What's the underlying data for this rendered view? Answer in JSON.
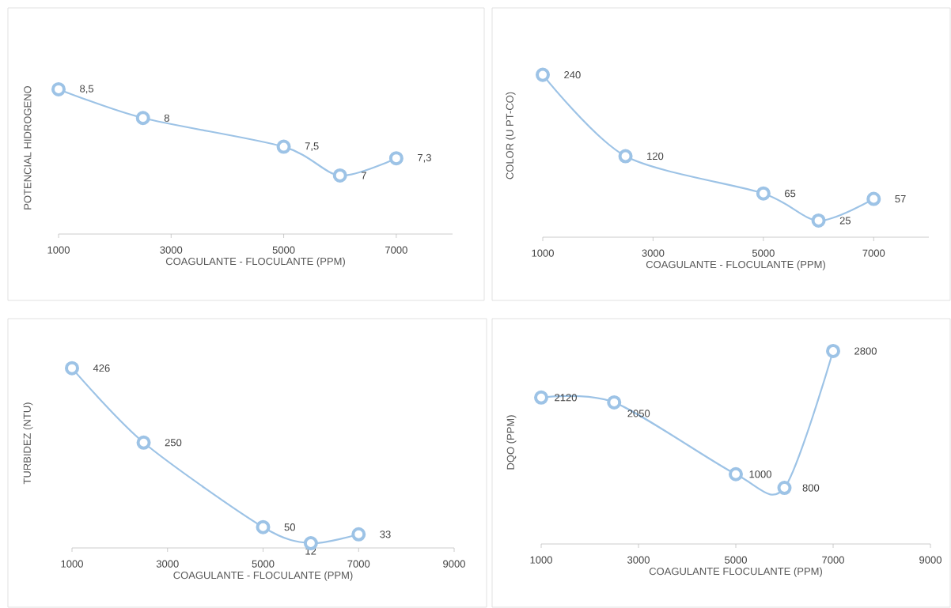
{
  "chart_data": [
    {
      "type": "line",
      "xlabel": "COAGULANTE - FLOCULANTE (PPM)",
      "ylabel": "POTENCIAL HIDROGENO",
      "x": [
        1000,
        2500,
        5000,
        6000,
        7000
      ],
      "values": [
        8.5,
        8,
        7.5,
        7,
        7.3
      ],
      "value_labels": [
        "8,5",
        "8",
        "7,5",
        "7",
        "7,3"
      ],
      "color": "#9dc3e6",
      "marker": "circle",
      "xlim": [
        1000,
        8000
      ],
      "xticks": [
        1000,
        3000,
        5000,
        7000
      ],
      "tick_labels": "x"
    },
    {
      "type": "line",
      "xlabel": "COAGULANTE - FLOCULANTE (PPM)",
      "ylabel": "COLOR (U PT-CO)",
      "x": [
        1000,
        2500,
        5000,
        6000,
        7000
      ],
      "values": [
        240,
        120,
        65,
        25,
        57
      ],
      "value_labels": [
        "240",
        "120",
        "65",
        "25",
        "57"
      ],
      "color": "#9dc3e6",
      "marker": "circle",
      "xlim": [
        1000,
        8000
      ],
      "xticks": [
        1000,
        3000,
        5000,
        7000
      ],
      "tick_labels": "x"
    },
    {
      "type": "line",
      "xlabel": "COAGULANTE - FLOCULANTE (PPM)",
      "ylabel": "TURBIDEZ (NTU)",
      "x": [
        1000,
        2500,
        5000,
        6000,
        7000
      ],
      "values": [
        426,
        250,
        50,
        12,
        33
      ],
      "value_labels": [
        "426",
        "250",
        "50",
        "12",
        "33"
      ],
      "color": "#9dc3e6",
      "marker": "circle",
      "xlim": [
        1000,
        9000
      ],
      "xticks": [
        1000,
        3000,
        5000,
        7000,
        9000
      ],
      "tick_labels": "x"
    },
    {
      "type": "line",
      "xlabel": "COAGULANTE FLOCULANTE (PPM)",
      "ylabel": "DQO (PPM)",
      "x": [
        1000,
        2500,
        5000,
        6000,
        7000
      ],
      "values": [
        2120,
        2050,
        1000,
        800,
        2800
      ],
      "value_labels": [
        "2120",
        "2050",
        "1000",
        "800",
        "2800"
      ],
      "color": "#9dc3e6",
      "marker": "circle",
      "xlim": [
        1000,
        9000
      ],
      "xticks": [
        1000,
        3000,
        5000,
        7000,
        9000
      ],
      "tick_labels": "x"
    }
  ]
}
